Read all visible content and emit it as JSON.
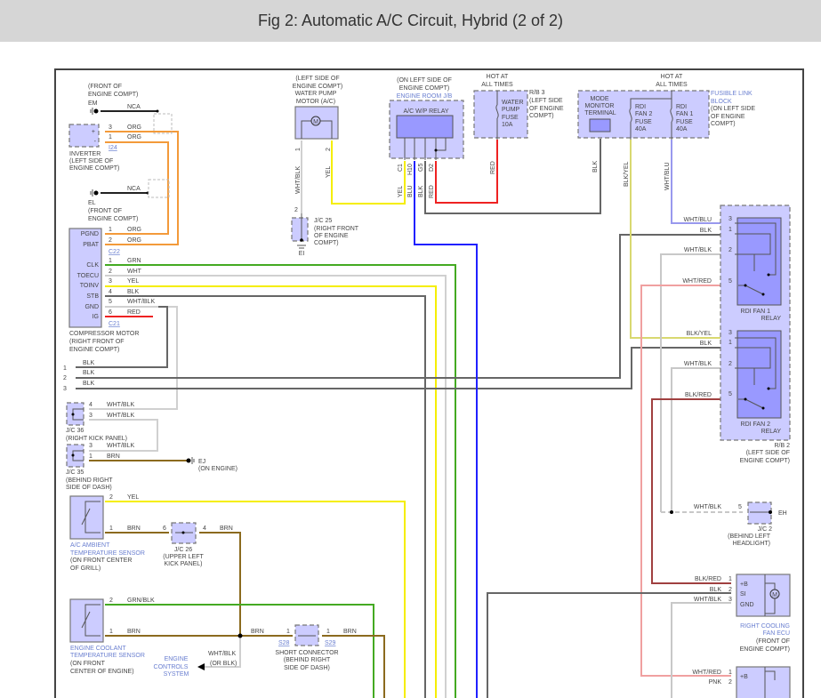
{
  "header": {
    "title": "Fig 2: Automatic A/C Circuit, Hybrid (2 of 2)"
  },
  "colors": {
    "component_fill": "#ccccff",
    "relay_inner": "#9999ff",
    "org": "#f39a3a",
    "grn": "#44aa22",
    "wht": "#cccccc",
    "yel": "#f5ee00",
    "blk": "#666666",
    "blu": "#2020ff",
    "red": "#ee2222",
    "brn": "#8b6a1e",
    "wht_blu": "#9999ee",
    "wht_red": "#f0a0a0",
    "blk_red": "#a04040",
    "blk_yel": "#d8d870"
  },
  "l": {
    "em_loc1": "(FRONT OF",
    "em_loc2": "ENGINE COMPT)",
    "em": "EM",
    "nca1": "NCA",
    "inv_p3": "3",
    "inv_w3": "ORG",
    "inv_p1": "1",
    "inv_w1": "ORG",
    "inv_plus": "+",
    "inv_minus": "-",
    "i24": "I24",
    "inv_name": "INVERTER",
    "inv_loc1": "(LEFT SIDE OF",
    "inv_loc2": "ENGINE COMPT)",
    "nca2": "NCA",
    "el": "EL",
    "el_loc1": "(FRONT OF",
    "el_loc2": "ENGINE COMPT)",
    "cm_pgnd": "PGND",
    "cm_pbat": "PBAT",
    "cm_clk": "CLK",
    "cm_toecu": "TOECU",
    "cm_toinv": "TOINV",
    "cm_stb": "STB",
    "cm_gnd": "GND",
    "cm_ig": "IG",
    "c22_p1": "1",
    "c22_w1": "ORG",
    "c22_p2": "2",
    "c22_w2": "ORG",
    "c22": "C22",
    "c21_p1": "1",
    "c21_w1": "GRN",
    "c21_p2": "2",
    "c21_w2": "WHT",
    "c21_p3": "3",
    "c21_w3": "YEL",
    "c21_p4": "4",
    "c21_w4": "BLK",
    "c21_p5": "5",
    "c21_w5": "WHT/BLK",
    "c21_p6": "6",
    "c21_w6": "RED",
    "c21": "C21",
    "cm_name": "COMPRESSOR MOTOR",
    "cm_loc1": "(RIGHT FRONT OF",
    "cm_loc2": "ENGINE COMPT)",
    "blk1_n": "1",
    "blk1_w": "BLK",
    "blk2_n": "2",
    "blk2_w": "BLK",
    "blk3_n": "3",
    "blk3_w": "BLK",
    "jc36_p4": "4",
    "jc36_w4": "WHT/BLK",
    "jc36_p3": "3",
    "jc36_w3": "WHT/BLK",
    "jc36": "J/C 36",
    "jc36_loc": "(RIGHT KICK PANEL)",
    "jc35_p3": "3",
    "jc35_w3": "WHT/BLK",
    "jc35_p1": "1",
    "jc35_w1": "BRN",
    "jc35": "J/C 35",
    "jc35_loc1": "(BEHIND RIGHT",
    "jc35_loc2": "SIDE OF DASH)",
    "ej": "EJ",
    "ej_loc": "(ON ENGINE)",
    "amb_p2": "2",
    "amb_w2": "YEL",
    "amb_p1": "1",
    "amb_w1": "BRN",
    "amb_name1": "A/C AMBIENT",
    "amb_name2": "TEMPERATURE SENSOR",
    "amb_loc1": "(ON FRONT CENTER",
    "amb_loc2": "OF GRILL)",
    "jc26_p6": "6",
    "jc26_p4": "4",
    "jc26_w4": "BRN",
    "jc26": "J/C 26",
    "jc26_loc1": "(UPPER LEFT",
    "jc26_loc2": "KICK PANEL)",
    "ect_p2": "2",
    "ect_w2": "GRN/BLK",
    "ect_p1": "1",
    "ect_w1": "BRN",
    "ect_name1": "ENGINE COOLANT",
    "ect_name2": "TEMPERATURE SENSOR",
    "ect_loc1": "(ON FRONT",
    "ect_loc2": "CENTER OF ENGINE)",
    "sc_w_in": "BRN",
    "sc_p_in": "1",
    "s28": "S28",
    "sc_p_out": "1",
    "s29": "S29",
    "sc_w_out": "BRN",
    "sc_name": "SHORT CONNECTOR",
    "sc_loc1": "(BEHIND RIGHT",
    "sc_loc2": "SIDE OF DASH)",
    "ecs_w1": "WHT/BLK",
    "ecs_w2": "(OR BLK)",
    "ecs1": "ENGINE",
    "ecs2": "CONTROLS",
    "ecs3": "SYSTEM",
    "wp_loc1": "(LEFT SIDE OF",
    "wp_loc2": "ENGINE COMPT)",
    "wp_name1": "WATER PUMP",
    "wp_name2": "MOTOR (A/C)",
    "motor_m": "M",
    "wp_p1": "1",
    "wp_p2": "2",
    "wp_w1": "WHT/BLK",
    "wp_w2": "YEL",
    "jc25_p2": "2",
    "jc25": "J/C 25",
    "jc25_loc1": "(RIGHT FRONT",
    "jc25_loc2": "OF ENGINE",
    "jc25_loc3": "COMPT)",
    "ei": "EI",
    "jb_loc1": "(ON LEFT SIDE OF",
    "jb_loc2": "ENGINE COMPT)",
    "jb_name": "ENGINE ROOM J/B",
    "wp_relay": "A/C W/P RELAY",
    "jb_c1": "C1",
    "jb_h10": "H10",
    "jb_g5": "G5",
    "jb_d2": "D2",
    "jb_w_c1": "YEL",
    "jb_w_h10": "BLU",
    "jb_w_g5": "BLK",
    "jb_w_d2": "RED",
    "hot1a": "HOT AT",
    "hot1b": "ALL TIMES",
    "wpf1": "WATER",
    "wpf2": "PUMP",
    "wpf3": "FUSE",
    "wpf4": "10A",
    "rb3": "R/B 3",
    "rb3_loc1": "(LEFT SIDE",
    "rb3_loc2": "OF ENGINE",
    "rb3_loc3": "COMPT)",
    "rb3_w": "RED",
    "hot2a": "HOT AT",
    "hot2b": "ALL TIMES",
    "mm1": "MODE",
    "mm2": "MONITOR",
    "mm3": "TERMINAL",
    "f2a": "RDI",
    "f2b": "FAN 2",
    "f2c": "FUSE",
    "f2d": "40A",
    "f1a": "RDI",
    "f1b": "FAN 1",
    "f1c": "FUSE",
    "f1d": "40A",
    "flb1": "FUSIBLE LINK",
    "flb2": "BLOCK",
    "flb_loc1": "(ON LEFT SIDE",
    "flb_loc2": "OF ENGINE",
    "flb_loc3": "COMPT)",
    "mm_w": "BLK",
    "f2_w": "BLK/YEL",
    "f1_w": "WHT/BLU",
    "r1_w3": "WHT/BLU",
    "r1_p3": "3",
    "r1_w1": "BLK",
    "r1_p1": "1",
    "r1_w2": "WHT/BLK",
    "r1_p2": "2",
    "r1_w5": "WHT/RED",
    "r1_p5": "5",
    "r1_name1": "RDI FAN 1",
    "r1_name2": "RELAY",
    "r2_w3": "BLK/YEL",
    "r2_p3": "3",
    "r2_w1": "BLK",
    "r2_p1": "1",
    "r2_w2": "WHT/BLK",
    "r2_p2": "2",
    "r2_w5": "BLK/RED",
    "r2_p5": "5",
    "r2_name1": "RDI FAN 2",
    "r2_name2": "RELAY",
    "rb2": "R/B 2",
    "rb2_loc1": "(LEFT SIDE OF",
    "rb2_loc2": "ENGINE COMPT)",
    "jc2_w": "WHT/BLK",
    "jc2_p5": "5",
    "eh": "EH",
    "jc2": "J/C 2",
    "jc2_loc1": "(BEHIND LEFT",
    "jc2_loc2": "HEADLIGHT)",
    "ecu_w1": "BLK/RED",
    "ecu_p1": "1",
    "ecu_w2": "BLK",
    "ecu_p2": "2",
    "ecu_w3": "WHT/BLK",
    "ecu_p3": "3",
    "ecu_b": "+B",
    "ecu_si": "SI",
    "ecu_gnd": "GND",
    "ecu_m": "M",
    "ecu_name1": "RIGHT COOLING",
    "ecu_name2": "FAN ECU",
    "ecu_loc1": "(FRONT OF",
    "ecu_loc2": "ENGINE COMPT)",
    "ecu2_w1": "WHT/RED",
    "ecu2_p1": "1",
    "ecu2_w2": "PNK",
    "ecu2_p2": "2",
    "ecu2_b": "+B"
  }
}
